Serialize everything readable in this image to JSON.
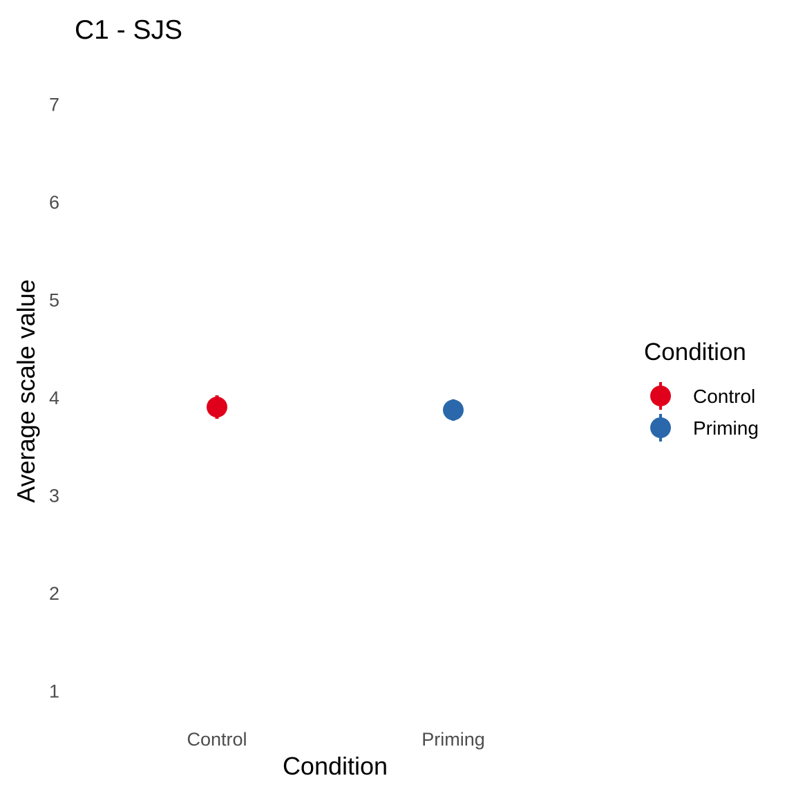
{
  "chart_data": {
    "type": "scatter",
    "title": "C1 - SJS",
    "xlabel": "Condition",
    "ylabel": "Average scale value",
    "categories": [
      "Control",
      "Priming"
    ],
    "ylim": [
      0.75,
      7.25
    ],
    "yticks": [
      "1",
      "2",
      "3",
      "4",
      "5",
      "6",
      "7"
    ],
    "grid": false,
    "series": [
      {
        "name": "Control",
        "x": "Control",
        "mean": 3.9,
        "lower": 3.78,
        "upper": 4.02,
        "color": "#e0001b"
      },
      {
        "name": "Priming",
        "x": "Priming",
        "mean": 3.87,
        "lower": 3.76,
        "upper": 3.98,
        "color": "#2b68ab"
      }
    ],
    "legend": {
      "title": "Condition",
      "placement": "right",
      "entries": [
        "Control",
        "Priming"
      ]
    }
  }
}
